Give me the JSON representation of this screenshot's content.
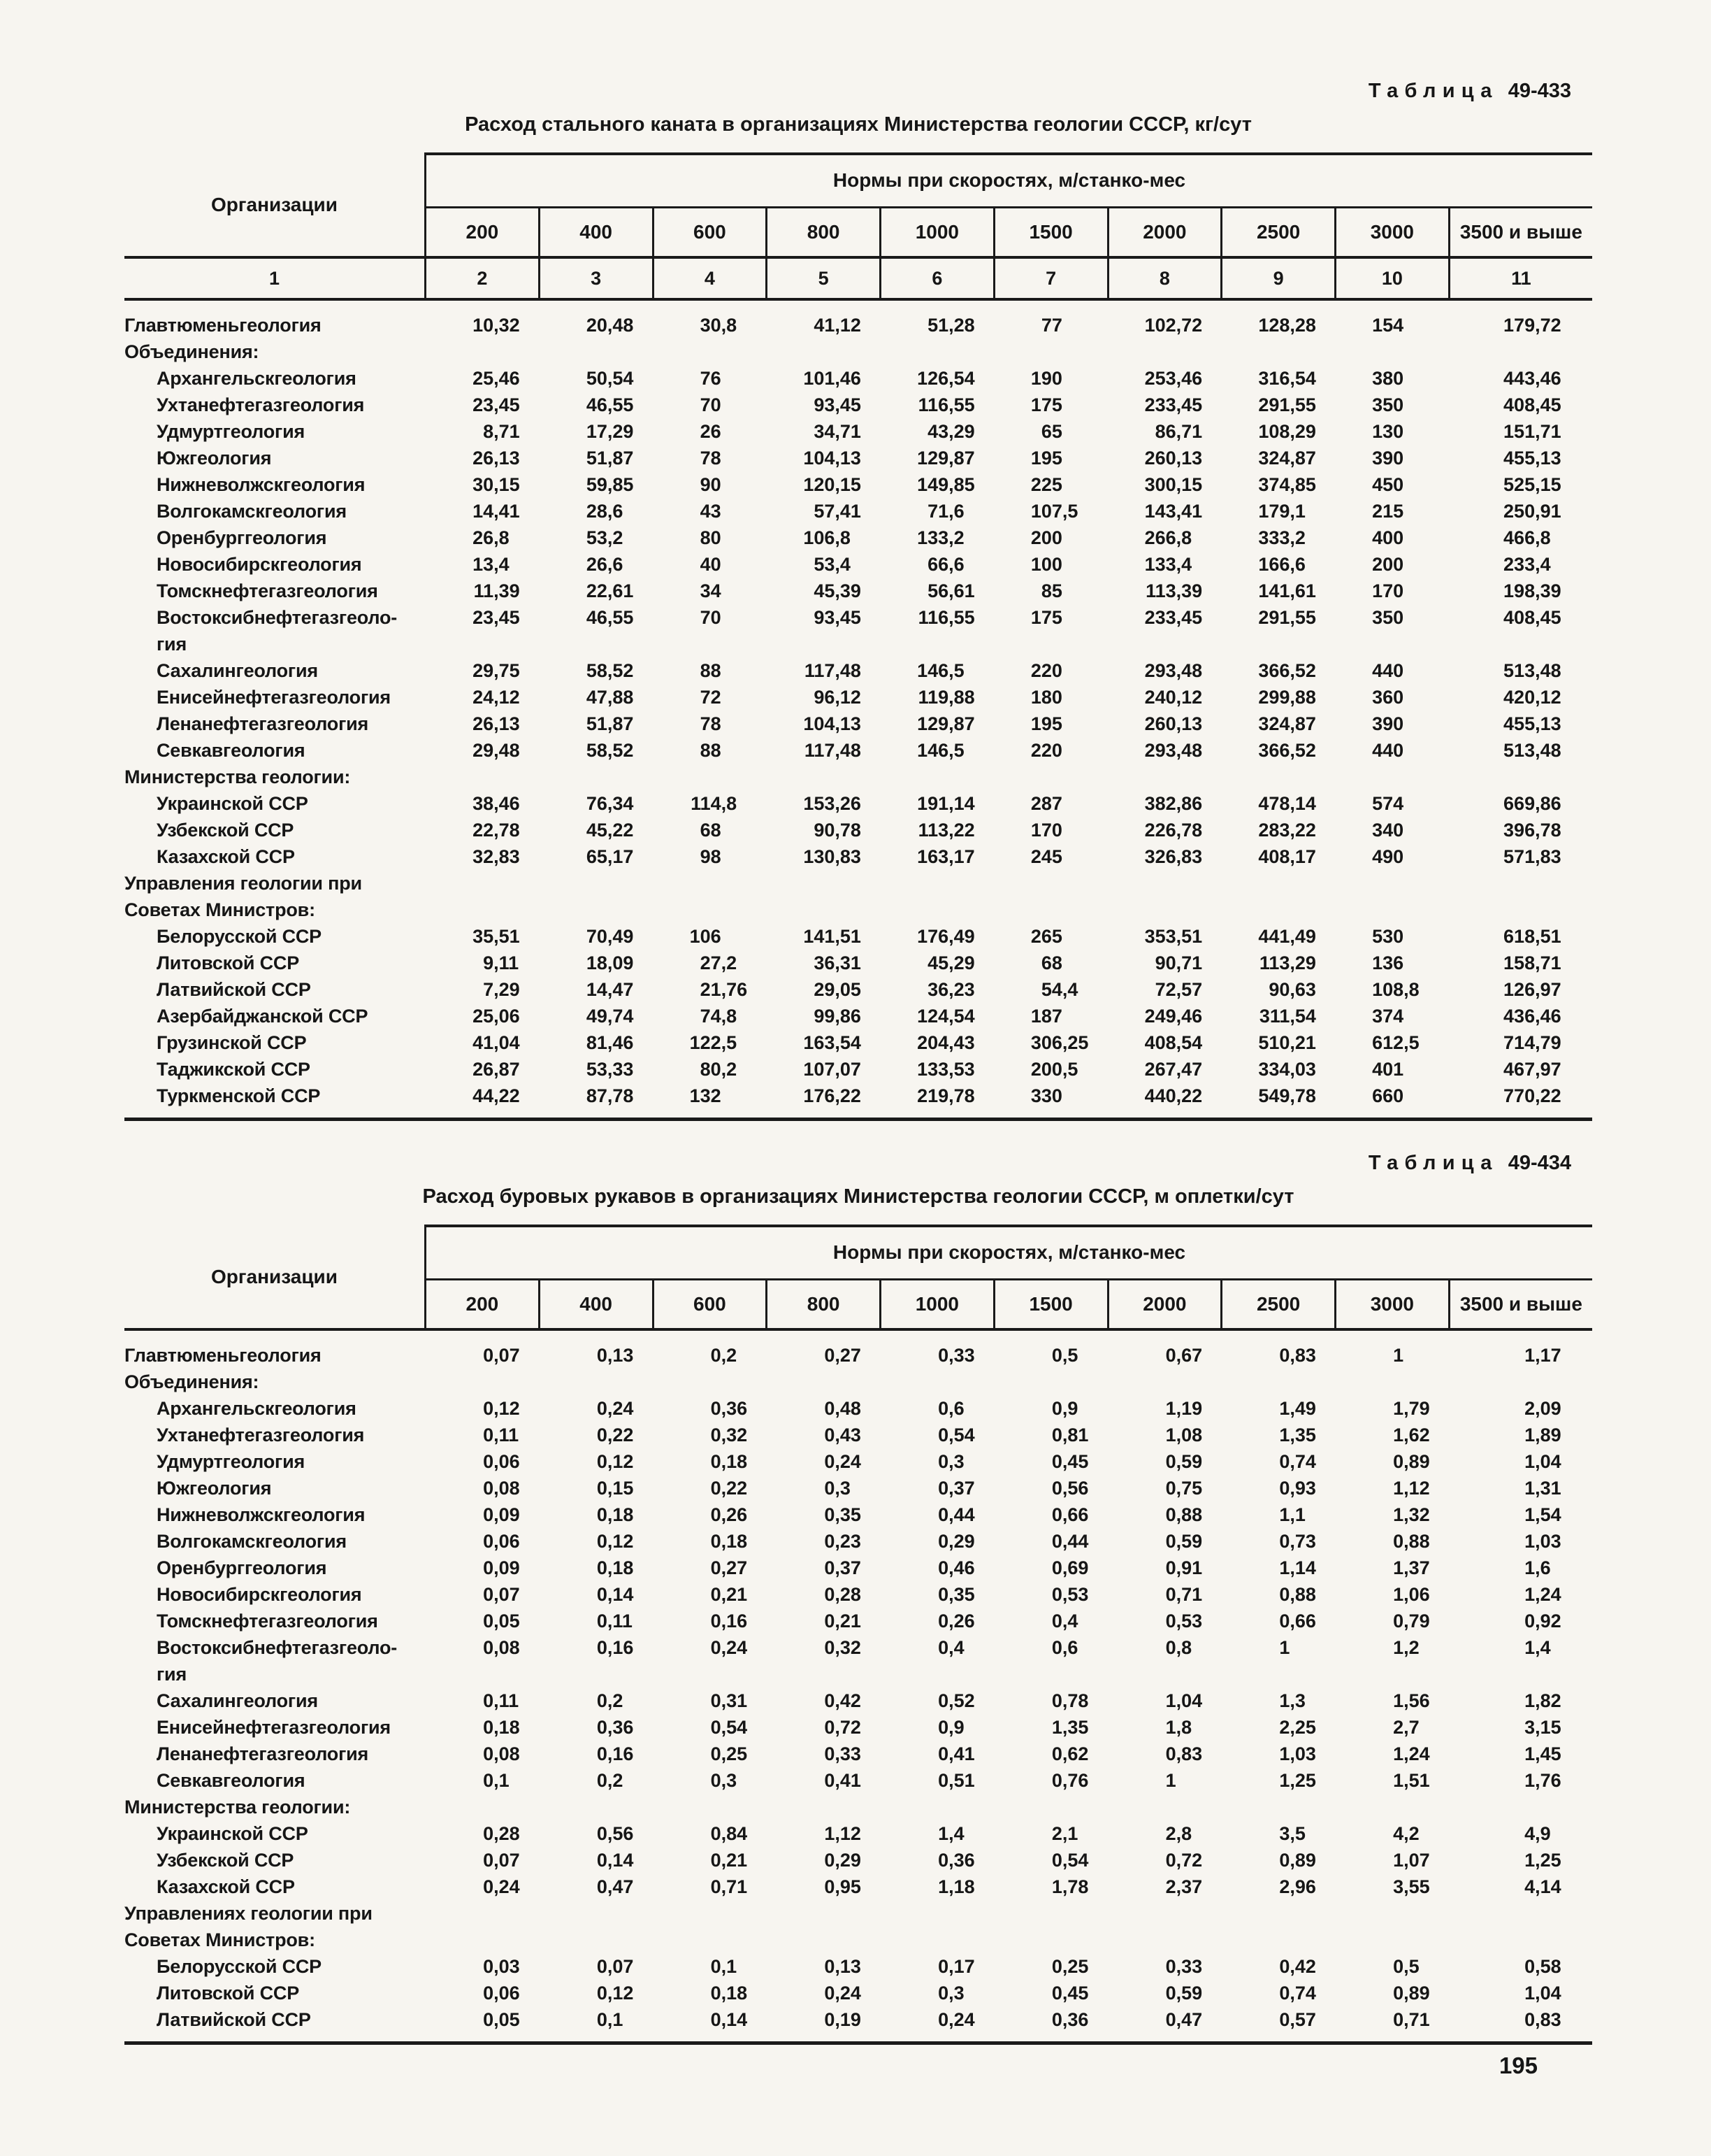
{
  "page": {
    "number": "195"
  },
  "tables": [
    {
      "label_word": "Таблица",
      "label_number": "49-433",
      "title": "Расход стального каната в организациях Министерства геологии СССР, кг/сут",
      "org_header": "Организации",
      "norms_header": "Нормы при скоростях, м/станко-мес",
      "speeds": [
        "200",
        "400",
        "600",
        "800",
        "1000",
        "1500",
        "2000",
        "2500",
        "3000",
        "3500 и выше"
      ],
      "col_numbers": [
        "1",
        "2",
        "3",
        "4",
        "5",
        "6",
        "7",
        "8",
        "9",
        "10",
        "11"
      ],
      "rows": [
        {
          "label": "Главтюменьгеология",
          "indent": 0,
          "values": [
            "10,32",
            "20,48",
            "30,8",
            "41,12",
            "51,28",
            "77",
            "102,72",
            "128,28",
            "154",
            "179,72"
          ]
        },
        {
          "label": "Объединения:",
          "indent": 0,
          "values": []
        },
        {
          "label": "Архангельскгеология",
          "indent": 1,
          "values": [
            "25,46",
            "50,54",
            "76",
            "101,46",
            "126,54",
            "190",
            "253,46",
            "316,54",
            "380",
            "443,46"
          ]
        },
        {
          "label": "Ухтанефтегазгеология",
          "indent": 1,
          "values": [
            "23,45",
            "46,55",
            "70",
            "93,45",
            "116,55",
            "175",
            "233,45",
            "291,55",
            "350",
            "408,45"
          ]
        },
        {
          "label": "Удмуртгеология",
          "indent": 1,
          "values": [
            "8,71",
            "17,29",
            "26",
            "34,71",
            "43,29",
            "65",
            "86,71",
            "108,29",
            "130",
            "151,71"
          ]
        },
        {
          "label": "Южгеология",
          "indent": 1,
          "values": [
            "26,13",
            "51,87",
            "78",
            "104,13",
            "129,87",
            "195",
            "260,13",
            "324,87",
            "390",
            "455,13"
          ]
        },
        {
          "label": "Нижневолжскгеология",
          "indent": 1,
          "values": [
            "30,15",
            "59,85",
            "90",
            "120,15",
            "149,85",
            "225",
            "300,15",
            "374,85",
            "450",
            "525,15"
          ]
        },
        {
          "label": "Волгокамскгеология",
          "indent": 1,
          "values": [
            "14,41",
            "28,6",
            "43",
            "57,41",
            "71,6",
            "107,5",
            "143,41",
            "179,1",
            "215",
            "250,91"
          ]
        },
        {
          "label": "Оренбурггеология",
          "indent": 1,
          "values": [
            "26,8",
            "53,2",
            "80",
            "106,8",
            "133,2",
            "200",
            "266,8",
            "333,2",
            "400",
            "466,8"
          ]
        },
        {
          "label": "Новосибирскгеология",
          "indent": 1,
          "values": [
            "13,4",
            "26,6",
            "40",
            "53,4",
            "66,6",
            "100",
            "133,4",
            "166,6",
            "200",
            "233,4"
          ]
        },
        {
          "label": "Томскнефтегазгеология",
          "indent": 1,
          "values": [
            "11,39",
            "22,61",
            "34",
            "45,39",
            "56,61",
            "85",
            "113,39",
            "141,61",
            "170",
            "198,39"
          ]
        },
        {
          "label": "Востоксибнефтегазгеоло-\nгия",
          "indent": 1,
          "values": [
            "23,45",
            "46,55",
            "70",
            "93,45",
            "116,55",
            "175",
            "233,45",
            "291,55",
            "350",
            "408,45"
          ]
        },
        {
          "label": "Сахалингеология",
          "indent": 1,
          "values": [
            "29,75",
            "58,52",
            "88",
            "117,48",
            "146,5",
            "220",
            "293,48",
            "366,52",
            "440",
            "513,48"
          ]
        },
        {
          "label": "Енисейнефтегазгеология",
          "indent": 1,
          "values": [
            "24,12",
            "47,88",
            "72",
            "96,12",
            "119,88",
            "180",
            "240,12",
            "299,88",
            "360",
            "420,12"
          ]
        },
        {
          "label": "Ленанефтегазгеология",
          "indent": 1,
          "values": [
            "26,13",
            "51,87",
            "78",
            "104,13",
            "129,87",
            "195",
            "260,13",
            "324,87",
            "390",
            "455,13"
          ]
        },
        {
          "label": "Севкавгеология",
          "indent": 1,
          "values": [
            "29,48",
            "58,52",
            "88",
            "117,48",
            "146,5",
            "220",
            "293,48",
            "366,52",
            "440",
            "513,48"
          ]
        },
        {
          "label": "Министерства геологии:",
          "indent": 0,
          "values": []
        },
        {
          "label": "Украинской ССР",
          "indent": 1,
          "values": [
            "38,46",
            "76,34",
            "114,8",
            "153,26",
            "191,14",
            "287",
            "382,86",
            "478,14",
            "574",
            "669,86"
          ]
        },
        {
          "label": "Узбекской ССР",
          "indent": 1,
          "values": [
            "22,78",
            "45,22",
            "68",
            "90,78",
            "113,22",
            "170",
            "226,78",
            "283,22",
            "340",
            "396,78"
          ]
        },
        {
          "label": "Казахской ССР",
          "indent": 1,
          "values": [
            "32,83",
            "65,17",
            "98",
            "130,83",
            "163,17",
            "245",
            "326,83",
            "408,17",
            "490",
            "571,83"
          ]
        },
        {
          "label": "Управления геологии при\nСоветах Министров:",
          "indent": 0,
          "values": []
        },
        {
          "label": "Белорусской ССР",
          "indent": 1,
          "values": [
            "35,51",
            "70,49",
            "106",
            "141,51",
            "176,49",
            "265",
            "353,51",
            "441,49",
            "530",
            "618,51"
          ]
        },
        {
          "label": "Литовской ССР",
          "indent": 1,
          "values": [
            "9,11",
            "18,09",
            "27,2",
            "36,31",
            "45,29",
            "68",
            "90,71",
            "113,29",
            "136",
            "158,71"
          ]
        },
        {
          "label": "Латвийской ССР",
          "indent": 1,
          "values": [
            "7,29",
            "14,47",
            "21,76",
            "29,05",
            "36,23",
            "54,4",
            "72,57",
            "90,63",
            "108,8",
            "126,97"
          ]
        },
        {
          "label": "Азербайджанской ССР",
          "indent": 1,
          "values": [
            "25,06",
            "49,74",
            "74,8",
            "99,86",
            "124,54",
            "187",
            "249,46",
            "311,54",
            "374",
            "436,46"
          ]
        },
        {
          "label": "Грузинской ССР",
          "indent": 1,
          "values": [
            "41,04",
            "81,46",
            "122,5",
            "163,54",
            "204,43",
            "306,25",
            "408,54",
            "510,21",
            "612,5",
            "714,79"
          ]
        },
        {
          "label": "Таджикской ССР",
          "indent": 1,
          "values": [
            "26,87",
            "53,33",
            "80,2",
            "107,07",
            "133,53",
            "200,5",
            "267,47",
            "334,03",
            "401",
            "467,97"
          ]
        },
        {
          "label": "Туркменской ССР",
          "indent": 1,
          "values": [
            "44,22",
            "87,78",
            "132",
            "176,22",
            "219,78",
            "330",
            "440,22",
            "549,78",
            "660",
            "770,22"
          ]
        }
      ]
    },
    {
      "label_word": "Таблица",
      "label_number": "49-434",
      "title": "Расход буровых рукавов в организациях Министерства геологии СССР, м оплетки/сут",
      "org_header": "Организации",
      "norms_header": "Нормы при скоростях, м/станко-мес",
      "speeds": [
        "200",
        "400",
        "600",
        "800",
        "1000",
        "1500",
        "2000",
        "2500",
        "3000",
        "3500 и выше"
      ],
      "col_numbers": null,
      "rows": [
        {
          "label": "Главтюменьгеология",
          "indent": 0,
          "values": [
            "0,07",
            "0,13",
            "0,2",
            "0,27",
            "0,33",
            "0,5",
            "0,67",
            "0,83",
            "1",
            "1,17"
          ]
        },
        {
          "label": "Объединения:",
          "indent": 0,
          "values": []
        },
        {
          "label": "Архангельскгеология",
          "indent": 1,
          "values": [
            "0,12",
            "0,24",
            "0,36",
            "0,48",
            "0,6",
            "0,9",
            "1,19",
            "1,49",
            "1,79",
            "2,09"
          ]
        },
        {
          "label": "Ухтанефтегазгеология",
          "indent": 1,
          "values": [
            "0,11",
            "0,22",
            "0,32",
            "0,43",
            "0,54",
            "0,81",
            "1,08",
            "1,35",
            "1,62",
            "1,89"
          ]
        },
        {
          "label": "Удмуртгеология",
          "indent": 1,
          "values": [
            "0,06",
            "0,12",
            "0,18",
            "0,24",
            "0,3",
            "0,45",
            "0,59",
            "0,74",
            "0,89",
            "1,04"
          ]
        },
        {
          "label": "Южгеология",
          "indent": 1,
          "values": [
            "0,08",
            "0,15",
            "0,22",
            "0,3",
            "0,37",
            "0,56",
            "0,75",
            "0,93",
            "1,12",
            "1,31"
          ]
        },
        {
          "label": "Нижневолжскгеология",
          "indent": 1,
          "values": [
            "0,09",
            "0,18",
            "0,26",
            "0,35",
            "0,44",
            "0,66",
            "0,88",
            "1,1",
            "1,32",
            "1,54"
          ]
        },
        {
          "label": "Волгокамскгеология",
          "indent": 1,
          "values": [
            "0,06",
            "0,12",
            "0,18",
            "0,23",
            "0,29",
            "0,44",
            "0,59",
            "0,73",
            "0,88",
            "1,03"
          ]
        },
        {
          "label": "Оренбурггеология",
          "indent": 1,
          "values": [
            "0,09",
            "0,18",
            "0,27",
            "0,37",
            "0,46",
            "0,69",
            "0,91",
            "1,14",
            "1,37",
            "1,6"
          ]
        },
        {
          "label": "Новосибирскгеология",
          "indent": 1,
          "values": [
            "0,07",
            "0,14",
            "0,21",
            "0,28",
            "0,35",
            "0,53",
            "0,71",
            "0,88",
            "1,06",
            "1,24"
          ]
        },
        {
          "label": "Томскнефтегазгеология",
          "indent": 1,
          "values": [
            "0,05",
            "0,11",
            "0,16",
            "0,21",
            "0,26",
            "0,4",
            "0,53",
            "0,66",
            "0,79",
            "0,92"
          ]
        },
        {
          "label": "Востоксибнефтегазгеоло-\nгия",
          "indent": 1,
          "values": [
            "0,08",
            "0,16",
            "0,24",
            "0,32",
            "0,4",
            "0,6",
            "0,8",
            "1",
            "1,2",
            "1,4"
          ]
        },
        {
          "label": "Сахалингеология",
          "indent": 1,
          "values": [
            "0,11",
            "0,2",
            "0,31",
            "0,42",
            "0,52",
            "0,78",
            "1,04",
            "1,3",
            "1,56",
            "1,82"
          ]
        },
        {
          "label": "Енисейнефтегазгеология",
          "indent": 1,
          "values": [
            "0,18",
            "0,36",
            "0,54",
            "0,72",
            "0,9",
            "1,35",
            "1,8",
            "2,25",
            "2,7",
            "3,15"
          ]
        },
        {
          "label": "Ленанефтегазгеология",
          "indent": 1,
          "values": [
            "0,08",
            "0,16",
            "0,25",
            "0,33",
            "0,41",
            "0,62",
            "0,83",
            "1,03",
            "1,24",
            "1,45"
          ]
        },
        {
          "label": "Севкавгеология",
          "indent": 1,
          "values": [
            "0,1",
            "0,2",
            "0,3",
            "0,41",
            "0,51",
            "0,76",
            "1",
            "1,25",
            "1,51",
            "1,76"
          ]
        },
        {
          "label": "Министерства геологии:",
          "indent": 0,
          "values": []
        },
        {
          "label": "Украинской ССР",
          "indent": 1,
          "values": [
            "0,28",
            "0,56",
            "0,84",
            "1,12",
            "1,4",
            "2,1",
            "2,8",
            "3,5",
            "4,2",
            "4,9"
          ]
        },
        {
          "label": "Узбекской ССР",
          "indent": 1,
          "values": [
            "0,07",
            "0,14",
            "0,21",
            "0,29",
            "0,36",
            "0,54",
            "0,72",
            "0,89",
            "1,07",
            "1,25"
          ]
        },
        {
          "label": "Казахской ССР",
          "indent": 1,
          "values": [
            "0,24",
            "0,47",
            "0,71",
            "0,95",
            "1,18",
            "1,78",
            "2,37",
            "2,96",
            "3,55",
            "4,14"
          ]
        },
        {
          "label": "Управлениях геологии при\nСоветах Министров:",
          "indent": 0,
          "values": []
        },
        {
          "label": "Белорусской ССР",
          "indent": 1,
          "values": [
            "0,03",
            "0,07",
            "0,1",
            "0,13",
            "0,17",
            "0,25",
            "0,33",
            "0,42",
            "0,5",
            "0,58"
          ]
        },
        {
          "label": "Литовской ССР",
          "indent": 1,
          "values": [
            "0,06",
            "0,12",
            "0,18",
            "0,24",
            "0,3",
            "0,45",
            "0,59",
            "0,74",
            "0,89",
            "1,04"
          ]
        },
        {
          "label": "Латвийской ССР",
          "indent": 1,
          "values": [
            "0,05",
            "0,1",
            "0,14",
            "0,19",
            "0,24",
            "0,36",
            "0,47",
            "0,57",
            "0,71",
            "0,83"
          ]
        }
      ]
    }
  ]
}
